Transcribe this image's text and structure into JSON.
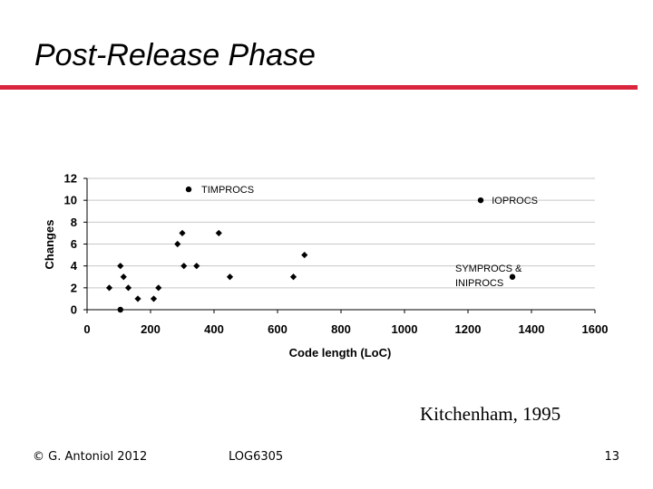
{
  "slide": {
    "title": "Post-Release Phase",
    "citation": "Kitchenham, 1995",
    "footer_left": "© G. Antoniol 2012",
    "footer_center": "LOG6305",
    "page_number": "13",
    "accent_color": "#d8253b"
  },
  "chart_data": {
    "type": "scatter",
    "title": "",
    "xlabel": "Code length (LoC)",
    "ylabel": "Changes",
    "xlim": [
      0,
      1600
    ],
    "ylim": [
      0,
      12
    ],
    "xticks": [
      0,
      200,
      400,
      600,
      800,
      1000,
      1200,
      1400,
      1600
    ],
    "yticks": [
      0,
      2,
      4,
      6,
      8,
      10,
      12
    ],
    "grid": true,
    "legend": "none",
    "series": [
      {
        "marker": "diamond",
        "points": [
          {
            "x": 70,
            "y": 2
          },
          {
            "x": 105,
            "y": 4
          },
          {
            "x": 115,
            "y": 3
          },
          {
            "x": 130,
            "y": 2
          },
          {
            "x": 160,
            "y": 1
          },
          {
            "x": 210,
            "y": 1
          },
          {
            "x": 225,
            "y": 2
          },
          {
            "x": 285,
            "y": 6
          },
          {
            "x": 300,
            "y": 7
          },
          {
            "x": 305,
            "y": 4
          },
          {
            "x": 345,
            "y": 4
          },
          {
            "x": 415,
            "y": 7
          },
          {
            "x": 450,
            "y": 3
          },
          {
            "x": 650,
            "y": 3
          },
          {
            "x": 685,
            "y": 5
          }
        ]
      },
      {
        "marker": "circle",
        "points": [
          {
            "x": 105,
            "y": 0
          },
          {
            "x": 320,
            "y": 11
          },
          {
            "x": 1240,
            "y": 10
          },
          {
            "x": 1340,
            "y": 3
          }
        ]
      }
    ],
    "annotations": [
      {
        "text": "TIMPROCS",
        "x": 360,
        "y": 11
      },
      {
        "text": "IOPROCS",
        "x": 1275,
        "y": 10
      },
      {
        "text": "SYMPROCS &",
        "x": 1160,
        "y": 3.8
      },
      {
        "text": "INIPROCS",
        "x": 1160,
        "y": 2.5
      }
    ]
  }
}
